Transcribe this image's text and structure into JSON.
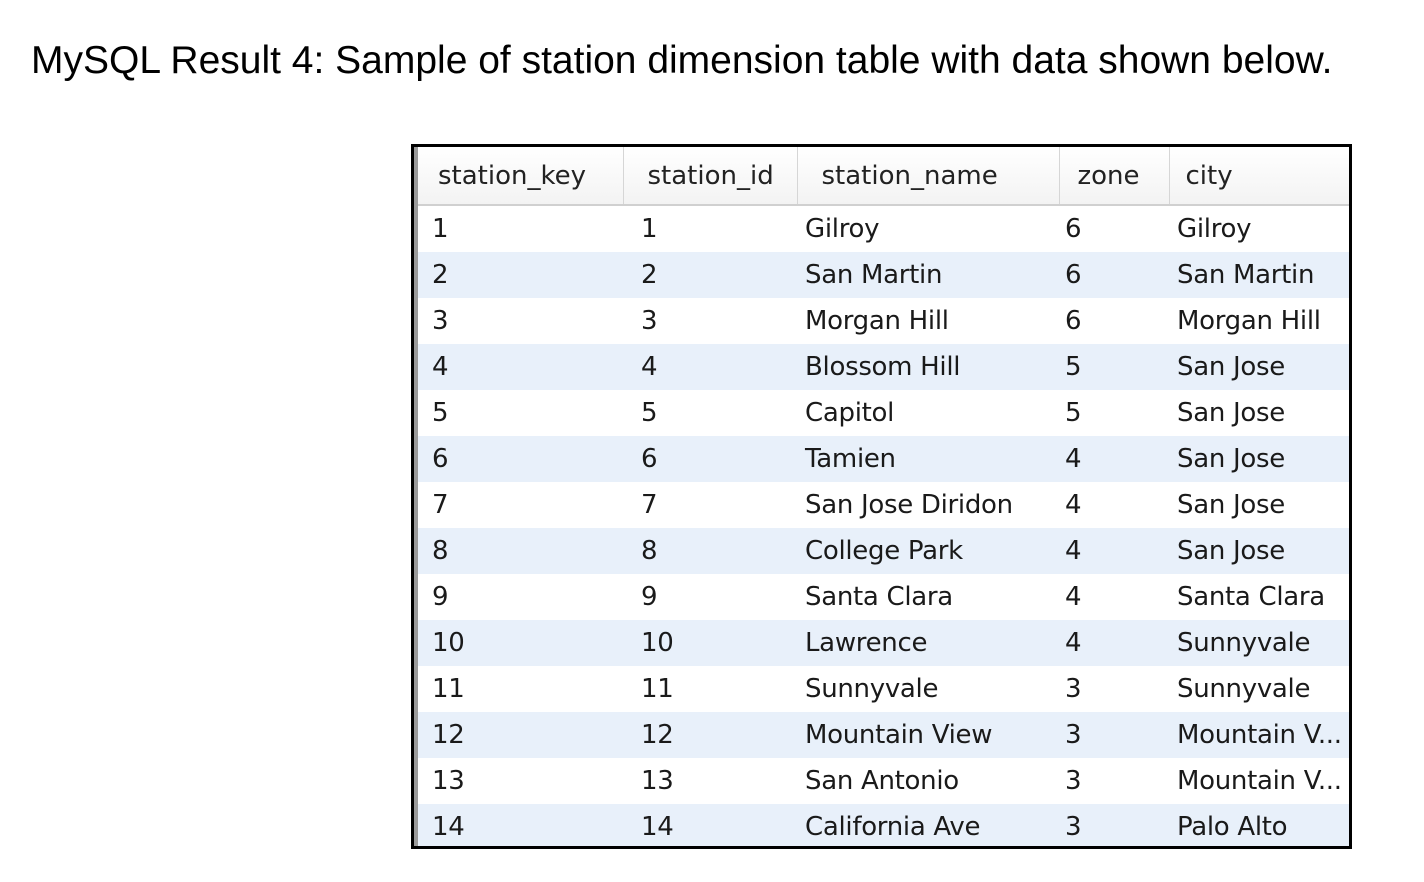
{
  "caption": "MySQL Result 4: Sample of station dimension table with data shown below.",
  "table": {
    "columns": [
      "station_key",
      "station_id",
      "station_name",
      "zone",
      "city"
    ],
    "rows": [
      [
        "1",
        "1",
        "Gilroy",
        "6",
        "Gilroy"
      ],
      [
        "2",
        "2",
        "San Martin",
        "6",
        "San Martin"
      ],
      [
        "3",
        "3",
        "Morgan Hill",
        "6",
        "Morgan Hill"
      ],
      [
        "4",
        "4",
        "Blossom Hill",
        "5",
        "San Jose"
      ],
      [
        "5",
        "5",
        "Capitol",
        "5",
        "San Jose"
      ],
      [
        "6",
        "6",
        "Tamien",
        "4",
        "San Jose"
      ],
      [
        "7",
        "7",
        "San Jose Diridon",
        "4",
        "San Jose"
      ],
      [
        "8",
        "8",
        "College Park",
        "4",
        "San Jose"
      ],
      [
        "9",
        "9",
        "Santa Clara",
        "4",
        "Santa Clara"
      ],
      [
        "10",
        "10",
        "Lawrence",
        "4",
        "Sunnyvale"
      ],
      [
        "11",
        "11",
        "Sunnyvale",
        "3",
        "Sunnyvale"
      ],
      [
        "12",
        "12",
        "Mountain View",
        "3",
        "Mountain V..."
      ],
      [
        "13",
        "13",
        "San Antonio",
        "3",
        "Mountain V..."
      ],
      [
        "14",
        "14",
        "California Ave",
        "3",
        "Palo Alto"
      ]
    ]
  },
  "colors": {
    "row_alt": "#e8f0fa",
    "frame": "#000000"
  }
}
